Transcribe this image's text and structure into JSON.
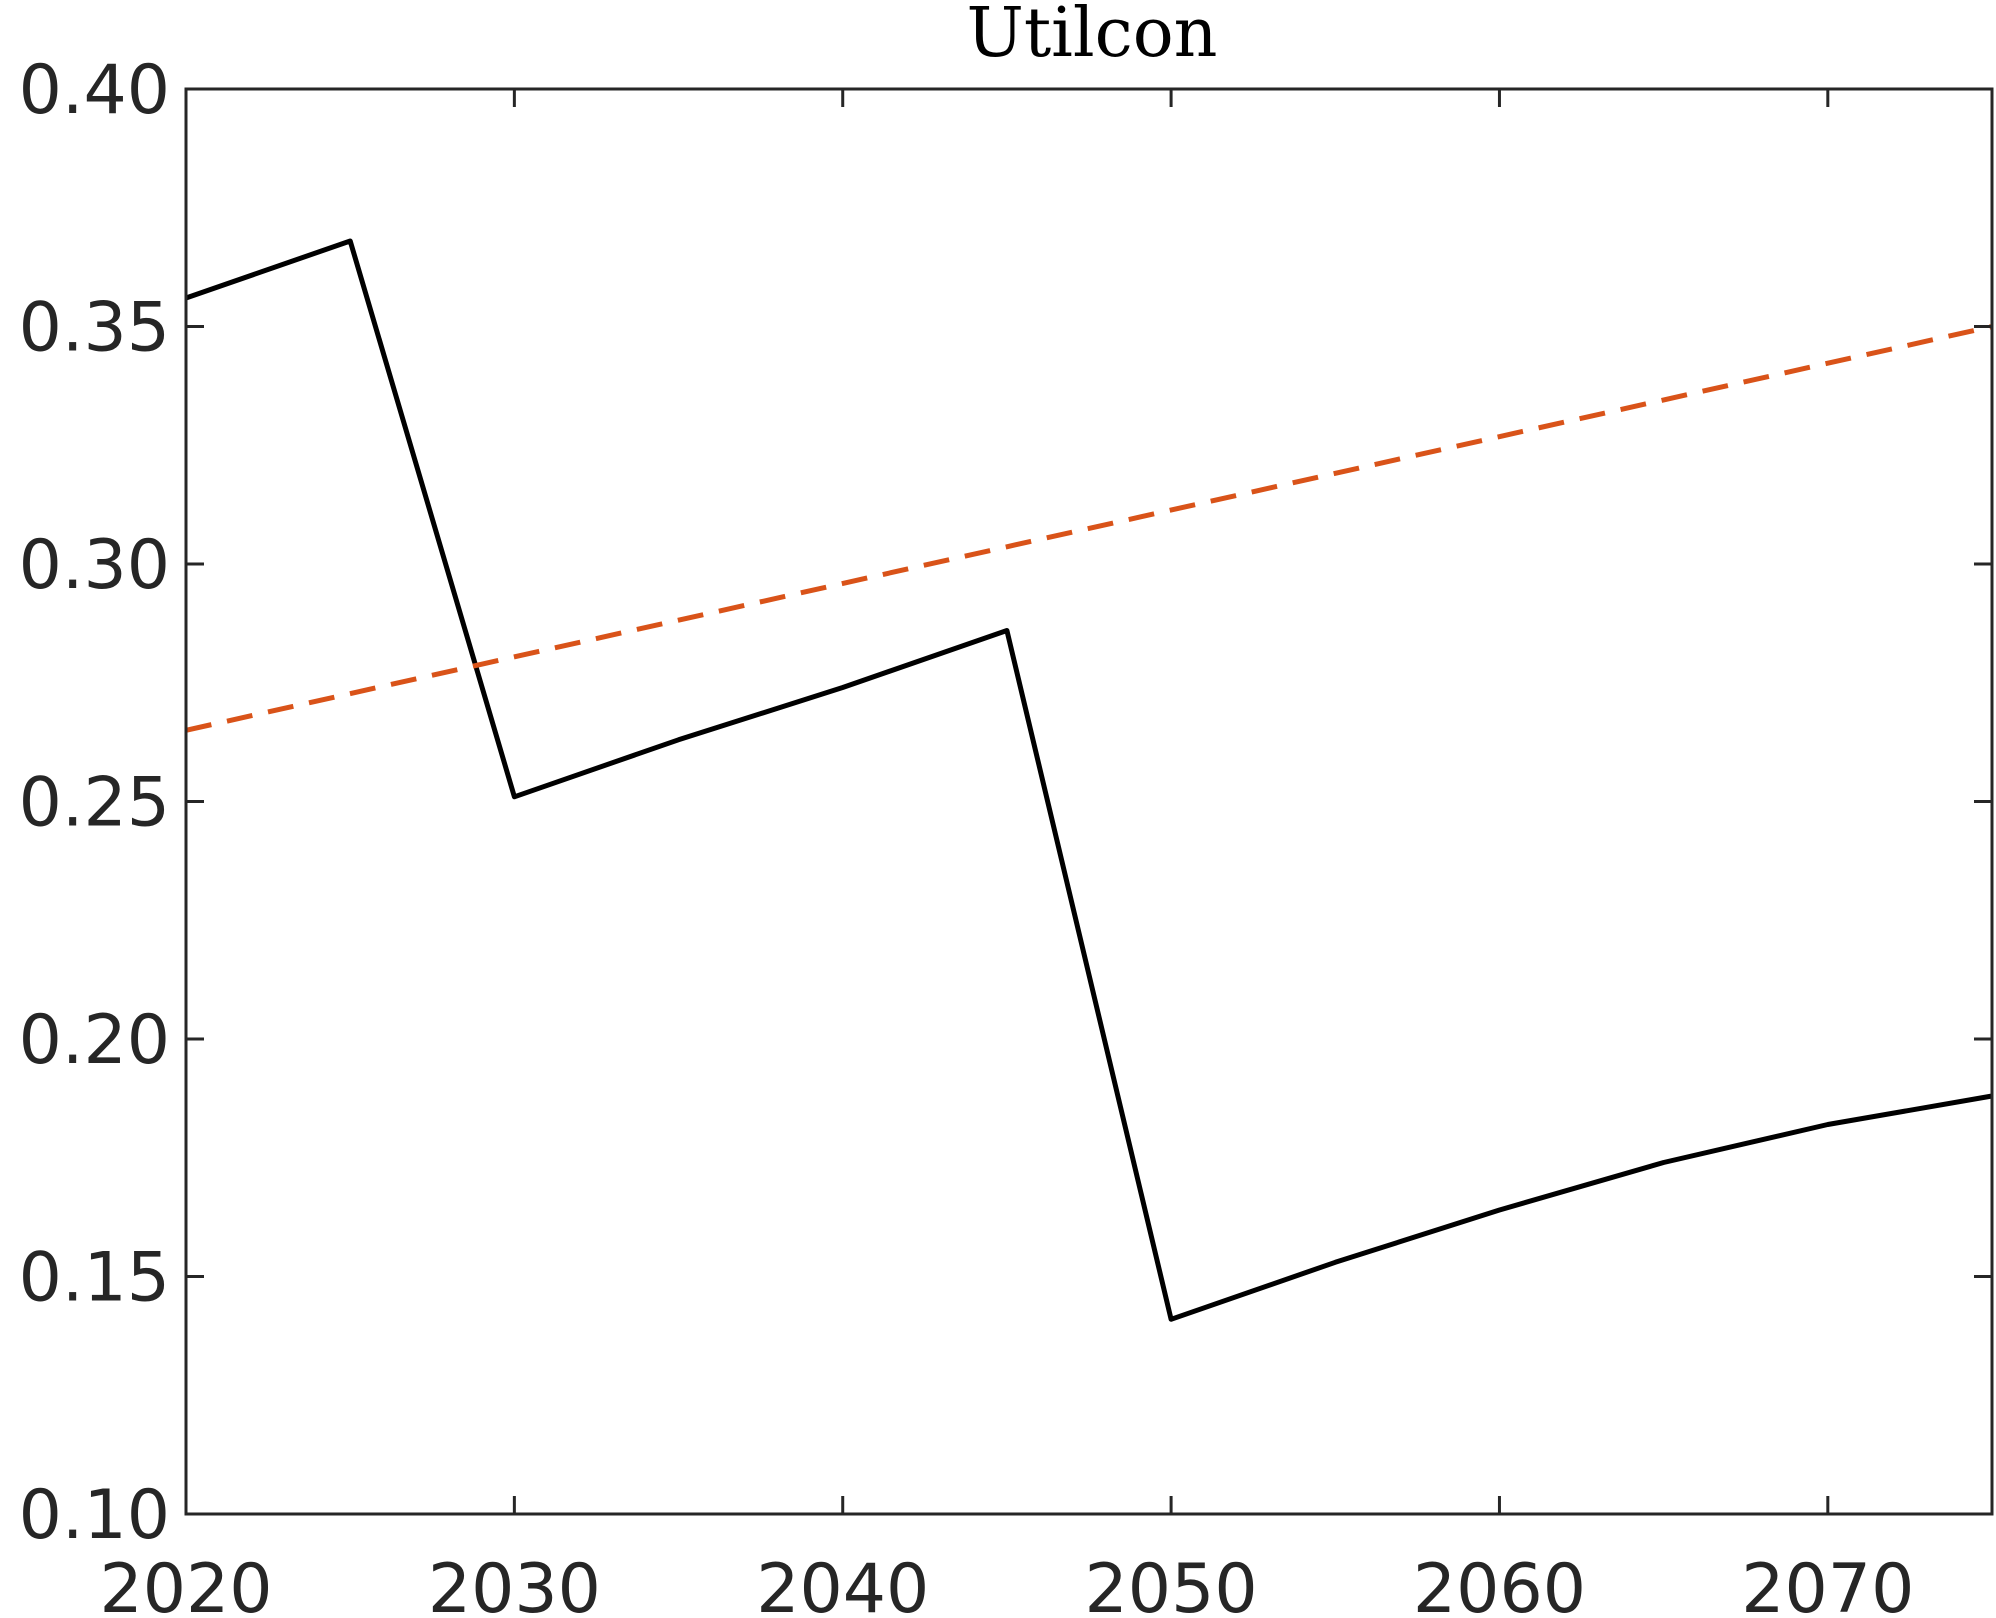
{
  "chart_data": {
    "type": "line",
    "title": "Utilcon",
    "xlabel": "",
    "ylabel": "",
    "xlim": [
      2020,
      2075
    ],
    "ylim": [
      0.1,
      0.4
    ],
    "xticks": [
      2020,
      2030,
      2040,
      2050,
      2060,
      2070
    ],
    "xtick_labels": [
      "2020",
      "2030",
      "2040",
      "2050",
      "2060",
      "2070"
    ],
    "yticks": [
      0.1,
      0.15,
      0.2,
      0.25,
      0.3,
      0.35,
      0.4
    ],
    "ytick_labels": [
      "0.10",
      "0.15",
      "0.20",
      "0.25",
      "0.30",
      "0.35",
      "0.40"
    ],
    "grid": false,
    "series": [
      {
        "style": "solid",
        "color": "#000000",
        "x": [
          2020,
          2025,
          2030,
          2035,
          2040,
          2045,
          2050,
          2055,
          2060,
          2065,
          2070,
          2075
        ],
        "y": [
          0.356,
          0.368,
          0.251,
          0.263,
          0.274,
          0.286,
          0.141,
          0.153,
          0.164,
          0.174,
          0.182,
          0.188
        ]
      },
      {
        "style": "dashed",
        "color": "#D95319",
        "x": [
          2020,
          2075
        ],
        "y": [
          0.265,
          0.35
        ]
      }
    ]
  }
}
